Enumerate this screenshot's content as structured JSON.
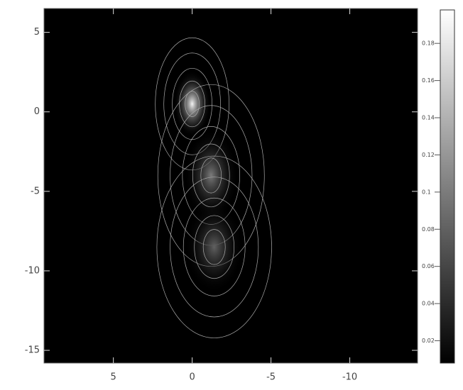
{
  "chart_data": {
    "type": "image",
    "xlim": [
      9.4,
      -14.3
    ],
    "ylim": [
      -15.8,
      6.5
    ],
    "xticks": [
      5,
      0,
      -5,
      -10
    ],
    "yticks": [
      5,
      0,
      -5,
      -10,
      -15
    ],
    "components": [
      {
        "x": 0,
        "y": 0.5,
        "peak": 0.19,
        "width": 0.9,
        "height": 1.6
      },
      {
        "x": -1.2,
        "y": -4,
        "peak": 0.1,
        "width": 1.3,
        "height": 2.2
      },
      {
        "x": -1.4,
        "y": -8.5,
        "peak": 0.08,
        "width": 1.4,
        "height": 2.2
      }
    ],
    "colorbar": {
      "clim": [
        0.008,
        0.198
      ],
      "ticks": [
        0.02,
        0.04,
        0.06,
        0.08,
        0.1,
        0.12,
        0.14,
        0.16,
        0.18
      ]
    }
  }
}
